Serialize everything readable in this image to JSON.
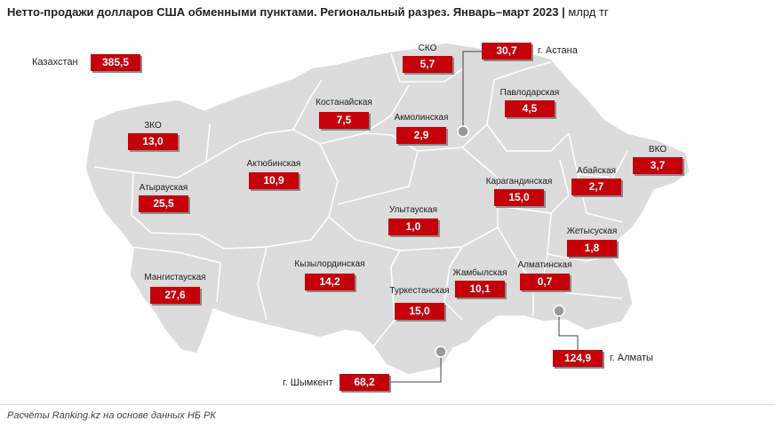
{
  "title": "Нетто-продажи долларов США обменными пунктами. Региональный разрез. Январь–март 2023",
  "unit": "млрд тг",
  "footer": "Расчёты Ranking.kz на основе данных НБ РК",
  "accent_color": "#c4000a",
  "map_fill": "#dcdcdc",
  "total": {
    "label": "Казахстан",
    "value": "385,5"
  },
  "regions": [
    {
      "id": "sko",
      "label": "СКО",
      "value": "5,7"
    },
    {
      "id": "kostanay",
      "label": "Костанайская",
      "value": "7,5"
    },
    {
      "id": "akmola",
      "label": "Акмолинская",
      "value": "2,9"
    },
    {
      "id": "pavlodar",
      "label": "Павлодарская",
      "value": "4,5"
    },
    {
      "id": "zko",
      "label": "ЗКО",
      "value": "13,0"
    },
    {
      "id": "aktobe",
      "label": "Актюбинская",
      "value": "10,9"
    },
    {
      "id": "atyrau",
      "label": "Атырауская",
      "value": "25,5"
    },
    {
      "id": "karaganda",
      "label": "Карагандинская",
      "value": "15,0"
    },
    {
      "id": "abay",
      "label": "Абайская",
      "value": "2,7"
    },
    {
      "id": "vko",
      "label": "ВКО",
      "value": "3,7"
    },
    {
      "id": "ulytau",
      "label": "Улытауская",
      "value": "1,0"
    },
    {
      "id": "zhetysu",
      "label": "Жетысуская",
      "value": "1,8"
    },
    {
      "id": "mangistau",
      "label": "Мангистауская",
      "value": "27,6"
    },
    {
      "id": "kyzylorda",
      "label": "Кызылординская",
      "value": "14,2"
    },
    {
      "id": "zhambyl",
      "label": "Жамбылская",
      "value": "10,1"
    },
    {
      "id": "almaty-region",
      "label": "Алматинская",
      "value": "0,7"
    },
    {
      "id": "turkestan",
      "label": "Туркестанская",
      "value": "15,0"
    }
  ],
  "cities": [
    {
      "id": "astana",
      "label": "г. Астана",
      "value": "30,7"
    },
    {
      "id": "almaty",
      "label": "г. Алматы",
      "value": "124,9"
    },
    {
      "id": "shymkent",
      "label": "г. Шымкент",
      "value": "68,2"
    }
  ]
}
